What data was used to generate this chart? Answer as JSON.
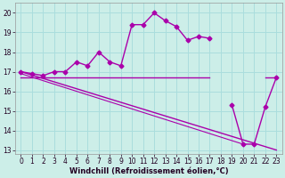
{
  "xlabel": "Windchill (Refroidissement éolien,°C)",
  "background_color": "#cceee8",
  "grid_color": "#aadddd",
  "line_color": "#aa00aa",
  "hours": [
    0,
    1,
    2,
    3,
    4,
    5,
    6,
    7,
    8,
    9,
    10,
    11,
    12,
    13,
    14,
    15,
    16,
    17,
    18,
    19,
    20,
    21,
    22,
    23
  ],
  "temp_values": [
    17.0,
    16.9,
    16.8,
    17.0,
    17.0,
    17.5,
    17.3,
    18.0,
    17.5,
    17.3,
    19.4,
    19.4,
    20.0,
    19.6,
    19.3,
    18.6,
    18.8,
    18.7,
    null,
    15.3,
    13.3,
    13.3,
    15.2,
    16.7
  ],
  "flat_line": {
    "x_start": 0,
    "x_end": 17,
    "y": 16.7
  },
  "flat_line2": {
    "x_start": 22,
    "x_end": 23,
    "y": 16.7
  },
  "diag_line1": {
    "x": [
      0,
      23
    ],
    "y": [
      17.0,
      13.0
    ]
  },
  "diag_line2": {
    "x": [
      0,
      20
    ],
    "y": [
      16.9,
      13.3
    ]
  },
  "ylim": [
    12.8,
    20.5
  ],
  "yticks": [
    13,
    14,
    15,
    16,
    17,
    18,
    19,
    20
  ],
  "xticks": [
    0,
    1,
    2,
    3,
    4,
    5,
    6,
    7,
    8,
    9,
    10,
    11,
    12,
    13,
    14,
    15,
    16,
    17,
    18,
    19,
    20,
    21,
    22,
    23
  ],
  "xlabel_fontsize": 6.0,
  "tick_fontsize": 5.5,
  "linewidth": 1.0,
  "markersize": 2.5
}
